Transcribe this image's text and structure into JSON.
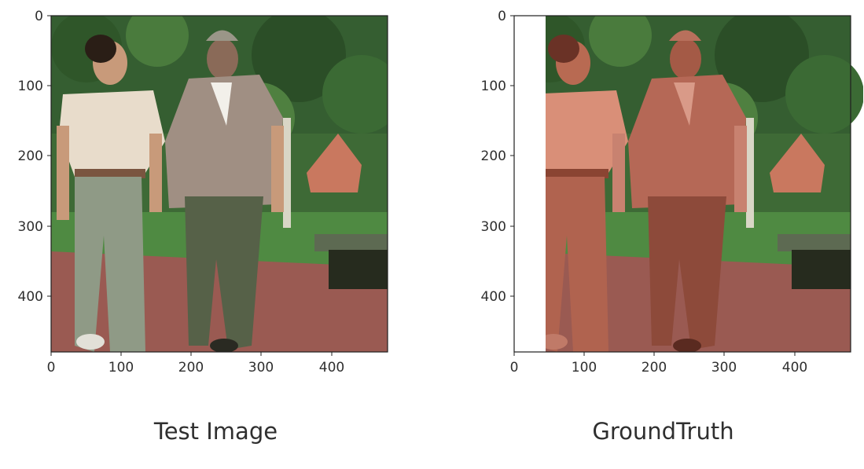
{
  "panels": [
    {
      "title": "Test Image",
      "x_ticks": [
        "0",
        "100",
        "200",
        "300",
        "400"
      ],
      "y_ticks": [
        "0",
        "100",
        "200",
        "300",
        "400"
      ],
      "overlay": false
    },
    {
      "title": "GroundTruth",
      "x_ticks": [
        "0",
        "100",
        "200",
        "300",
        "400"
      ],
      "y_ticks": [
        "0",
        "100",
        "200",
        "300",
        "400"
      ],
      "overlay": true,
      "overlay_color": "#c8503a"
    }
  ],
  "colors": {
    "foliage": "#3e6a36",
    "foliage_dark": "#243b22",
    "path": "#9a5a52",
    "grass": "#4f8a42",
    "bench": "#262b1e",
    "shirt_left": "#e8dccb",
    "jeans_left": "#8f9a86",
    "shirt_right": "#a08f83",
    "pants_right": "#566148",
    "skin": "#c89a7a"
  }
}
